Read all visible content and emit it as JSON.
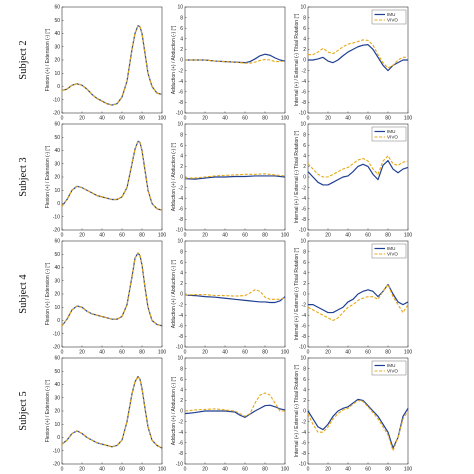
{
  "colors": {
    "imu": "#1f3f93",
    "vivo": "#e6a817"
  },
  "legend": {
    "imu_label": "IMU",
    "vivo_label": "VIVO"
  },
  "y_labels": [
    "Flexion (+) / Extension (-) [°]",
    "Adduction (+) / Abduction (-) [°]",
    "Internal (+) / External (-) Tibial Rotation [°]"
  ],
  "rows": [
    {
      "subject": "Subject 2"
    },
    {
      "subject": "Subject 3"
    },
    {
      "subject": "Subject 4"
    },
    {
      "subject": "Subject 5"
    }
  ],
  "chart_data": [
    {
      "type": "line",
      "subject": "Subject 2",
      "ylabel": "Flexion (+) / Extension (-) [°]",
      "xlim": [
        0,
        100
      ],
      "ylim": [
        -20,
        60
      ],
      "x": [
        0,
        5,
        10,
        15,
        20,
        25,
        30,
        35,
        40,
        45,
        50,
        55,
        60,
        65,
        70,
        73,
        76,
        78,
        80,
        83,
        86,
        90,
        95,
        100
      ],
      "series": [
        {
          "name": "IMU",
          "values": [
            -3,
            -2,
            1,
            2,
            1,
            -2,
            -6,
            -9,
            -11,
            -13,
            -14,
            -13,
            -8,
            4,
            28,
            40,
            46,
            45,
            40,
            25,
            10,
            0,
            -5,
            -6
          ]
        },
        {
          "name": "VIVO",
          "values": [
            -3,
            -2,
            1,
            2,
            1,
            -2,
            -6,
            -9,
            -11,
            -13,
            -14,
            -13,
            -8,
            4,
            28,
            40,
            46,
            45,
            40,
            25,
            10,
            0,
            -5,
            -6
          ]
        }
      ]
    },
    {
      "type": "line",
      "subject": "Subject 2",
      "ylabel": "Adduction (+) / Abduction (-) [°]",
      "xlim": [
        0,
        100
      ],
      "ylim": [
        -10,
        10
      ],
      "x": [
        0,
        10,
        20,
        30,
        40,
        50,
        60,
        65,
        70,
        75,
        80,
        85,
        90,
        95,
        100
      ],
      "series": [
        {
          "name": "IMU",
          "values": [
            0,
            0,
            0,
            -0.2,
            -0.3,
            -0.4,
            -0.5,
            -0.3,
            0.2,
            0.8,
            1.1,
            0.9,
            0.4,
            0,
            -0.2
          ]
        },
        {
          "name": "VIVO",
          "values": [
            0,
            0,
            0,
            -0.2,
            -0.3,
            -0.4,
            -0.6,
            -0.6,
            -0.4,
            -0.1,
            0.1,
            0,
            -0.3,
            -0.3,
            -0.2
          ]
        }
      ]
    },
    {
      "type": "line",
      "subject": "Subject 2",
      "ylabel": "Internal (+) / External (-) Tibial Rotation [°]",
      "xlim": [
        0,
        100
      ],
      "ylim": [
        -10,
        10
      ],
      "x": [
        0,
        5,
        10,
        15,
        20,
        25,
        30,
        35,
        40,
        45,
        50,
        55,
        60,
        65,
        70,
        75,
        80,
        85,
        90,
        95,
        100
      ],
      "series": [
        {
          "name": "IMU",
          "values": [
            0,
            0,
            0.2,
            0.5,
            -0.2,
            -0.5,
            0,
            0.8,
            1.5,
            2,
            2.5,
            2.8,
            2.9,
            2,
            0.5,
            -1,
            -2,
            -1,
            -0.5,
            0,
            0
          ]
        },
        {
          "name": "VIVO",
          "values": [
            1,
            1,
            1.5,
            2.2,
            1.5,
            1.2,
            1.8,
            2.5,
            3,
            3.2,
            3.5,
            3.8,
            3.7,
            2.8,
            1,
            -0.5,
            -1.5,
            -1,
            0,
            0.5,
            0.5
          ]
        }
      ]
    },
    {
      "type": "line",
      "subject": "Subject 3",
      "ylabel": "Flexion (+) / Extension (-) [°]",
      "xlim": [
        0,
        100
      ],
      "ylim": [
        -20,
        60
      ],
      "x": [
        0,
        5,
        10,
        15,
        20,
        25,
        30,
        35,
        40,
        45,
        50,
        55,
        60,
        65,
        70,
        73,
        76,
        78,
        80,
        83,
        86,
        90,
        95,
        100
      ],
      "series": [
        {
          "name": "IMU",
          "values": [
            -2,
            3,
            10,
            13,
            12,
            10,
            8,
            6,
            5,
            4,
            3,
            3,
            5,
            12,
            30,
            41,
            47,
            46,
            40,
            25,
            10,
            0,
            -4,
            -5
          ]
        },
        {
          "name": "VIVO",
          "values": [
            -2,
            3,
            10,
            13,
            12,
            10,
            8,
            6,
            5,
            4,
            3,
            3,
            5,
            12,
            30,
            41,
            47,
            46,
            40,
            25,
            10,
            0,
            -4,
            -5
          ]
        }
      ]
    },
    {
      "type": "line",
      "subject": "Subject 3",
      "ylabel": "Adduction (+) / Abduction (-) [°]",
      "xlim": [
        0,
        100
      ],
      "ylim": [
        -10,
        10
      ],
      "x": [
        0,
        10,
        20,
        30,
        40,
        50,
        60,
        70,
        80,
        90,
        100
      ],
      "series": [
        {
          "name": "IMU",
          "values": [
            -0.3,
            -0.4,
            -0.2,
            0,
            0,
            0.1,
            0.1,
            0.2,
            0.2,
            0.2,
            0
          ]
        },
        {
          "name": "VIVO",
          "values": [
            -0.2,
            -0.2,
            0,
            0.2,
            0.3,
            0.4,
            0.5,
            0.5,
            0.6,
            0.4,
            0.2
          ]
        }
      ]
    },
    {
      "type": "line",
      "subject": "Subject 3",
      "ylabel": "Internal (+) / External (-) Tibial Rotation [°]",
      "xlim": [
        0,
        100
      ],
      "ylim": [
        -10,
        10
      ],
      "x": [
        0,
        5,
        10,
        15,
        20,
        25,
        30,
        35,
        40,
        45,
        50,
        55,
        60,
        65,
        70,
        75,
        80,
        85,
        90,
        95,
        100
      ],
      "series": [
        {
          "name": "IMU",
          "values": [
            1,
            0,
            -1,
            -1.5,
            -1.5,
            -1,
            -0.5,
            0,
            0.2,
            1,
            2,
            2.4,
            2,
            0.5,
            -0.5,
            2.2,
            3.1,
            1.5,
            0.8,
            1.5,
            1.8
          ]
        },
        {
          "name": "VIVO",
          "values": [
            2.5,
            1.5,
            0.5,
            0,
            0,
            0.5,
            1,
            1.5,
            1.8,
            2.5,
            3.2,
            3.5,
            3,
            1.5,
            0.5,
            3,
            4,
            2.5,
            2.2,
            2.8,
            3
          ]
        }
      ]
    },
    {
      "type": "line",
      "subject": "Subject 4",
      "ylabel": "Flexion (+) / Extension (-) [°]",
      "xlim": [
        0,
        100
      ],
      "ylim": [
        -20,
        60
      ],
      "x": [
        0,
        5,
        10,
        15,
        20,
        25,
        30,
        35,
        40,
        45,
        50,
        55,
        60,
        65,
        70,
        73,
        76,
        78,
        80,
        83,
        86,
        90,
        95,
        100
      ],
      "series": [
        {
          "name": "IMU",
          "values": [
            -4,
            1,
            8,
            11,
            10,
            7,
            5,
            4,
            3,
            2,
            1,
            1,
            3,
            12,
            33,
            47,
            51,
            49,
            42,
            25,
            10,
            0,
            -3,
            -4
          ]
        },
        {
          "name": "VIVO",
          "values": [
            -4,
            1,
            8,
            11,
            10,
            7,
            5,
            4,
            3,
            2,
            1,
            1,
            3,
            12,
            33,
            47,
            51,
            49,
            42,
            25,
            10,
            0,
            -3,
            -4
          ]
        }
      ]
    },
    {
      "type": "line",
      "subject": "Subject 4",
      "ylabel": "Adduction (+) / Abduction (-) [°]",
      "xlim": [
        0,
        100
      ],
      "ylim": [
        -10,
        10
      ],
      "x": [
        0,
        10,
        20,
        30,
        40,
        50,
        60,
        65,
        70,
        75,
        80,
        85,
        90,
        95,
        100
      ],
      "series": [
        {
          "name": "IMU",
          "values": [
            -0.2,
            -0.3,
            -0.5,
            -0.6,
            -0.8,
            -1,
            -1.2,
            -1.3,
            -1.4,
            -1.5,
            -1.5,
            -1.6,
            -1.6,
            -1.3,
            -0.5
          ]
        },
        {
          "name": "VIVO",
          "values": [
            -0.2,
            -0.1,
            -0.1,
            -0.3,
            -0.3,
            -0.4,
            -0.3,
            0.2,
            0.8,
            0.5,
            -0.6,
            -1,
            -1,
            -1,
            -0.7
          ]
        }
      ]
    },
    {
      "type": "line",
      "subject": "Subject 4",
      "ylabel": "Internal (+) / External (-) Tibial Rotation [°]",
      "xlim": [
        0,
        100
      ],
      "ylim": [
        -10,
        10
      ],
      "x": [
        0,
        5,
        10,
        15,
        20,
        25,
        30,
        35,
        40,
        45,
        50,
        55,
        60,
        65,
        70,
        75,
        80,
        85,
        90,
        95,
        100
      ],
      "series": [
        {
          "name": "IMU",
          "values": [
            -2,
            -2,
            -2.5,
            -3,
            -3.5,
            -3.5,
            -3,
            -2.5,
            -1.5,
            -1,
            0,
            0.5,
            0.8,
            0.5,
            -0.5,
            0.5,
            1.8,
            0,
            -1.5,
            -2,
            -1.5
          ]
        },
        {
          "name": "VIVO",
          "values": [
            -2.5,
            -3,
            -3.5,
            -4,
            -4.5,
            -5,
            -4.5,
            -3.5,
            -2.5,
            -2,
            -1.2,
            -0.8,
            -0.5,
            -0.5,
            -1,
            0.5,
            1.8,
            -0.5,
            -2,
            -3.5,
            -2
          ]
        }
      ]
    },
    {
      "type": "line",
      "subject": "Subject 5",
      "ylabel": "Flexion (+) / Extension (-) [°]",
      "xlim": [
        0,
        100
      ],
      "ylim": [
        -20,
        60
      ],
      "x": [
        0,
        5,
        10,
        15,
        20,
        25,
        30,
        35,
        40,
        45,
        50,
        55,
        60,
        65,
        70,
        73,
        76,
        78,
        80,
        83,
        86,
        90,
        95,
        100
      ],
      "series": [
        {
          "name": "IMU",
          "values": [
            -5,
            -2,
            3,
            5,
            3,
            0,
            -2,
            -4,
            -5,
            -6,
            -7,
            -6,
            -2,
            12,
            33,
            42,
            46,
            44,
            37,
            22,
            8,
            -2,
            -6,
            -8
          ]
        },
        {
          "name": "VIVO",
          "values": [
            -5,
            -2,
            3,
            5,
            3,
            0,
            -2,
            -4,
            -5,
            -6,
            -7,
            -6,
            -2,
            12,
            33,
            42,
            46,
            44,
            37,
            22,
            8,
            -2,
            -6,
            -8
          ]
        }
      ]
    },
    {
      "type": "line",
      "subject": "Subject 5",
      "ylabel": "Adduction (+) / Abduction (-) [°]",
      "xlim": [
        0,
        100
      ],
      "ylim": [
        -10,
        10
      ],
      "x": [
        0,
        10,
        20,
        30,
        40,
        50,
        55,
        60,
        65,
        70,
        75,
        80,
        85,
        90,
        95,
        100
      ],
      "series": [
        {
          "name": "IMU",
          "values": [
            -0.5,
            -0.3,
            0,
            0,
            0,
            -0.2,
            -0.8,
            -1.2,
            -0.6,
            0,
            0.5,
            1,
            1.1,
            0.8,
            0.4,
            0.2
          ]
        },
        {
          "name": "VIVO",
          "values": [
            0,
            0.2,
            0.3,
            0.4,
            0.2,
            0,
            -0.5,
            -1,
            -0.5,
            1.5,
            3,
            3.4,
            3,
            1.5,
            0,
            0
          ]
        }
      ]
    },
    {
      "type": "line",
      "subject": "Subject 5",
      "ylabel": "Internal (+) / External (-) Tibial Rotation [°]",
      "xlim": [
        0,
        100
      ],
      "ylim": [
        -10,
        10
      ],
      "x": [
        0,
        5,
        10,
        15,
        20,
        25,
        30,
        35,
        40,
        45,
        50,
        55,
        60,
        65,
        70,
        75,
        80,
        85,
        90,
        95,
        100
      ],
      "series": [
        {
          "name": "IMU",
          "values": [
            0,
            -1.5,
            -3,
            -3.5,
            -2.5,
            -1,
            0,
            0.5,
            0.8,
            1.5,
            2.2,
            2,
            1,
            0,
            -1,
            -2.5,
            -4,
            -7,
            -5,
            -1,
            0.5
          ]
        },
        {
          "name": "VIVO",
          "values": [
            -0.5,
            -2.5,
            -4,
            -4,
            -3,
            -1.5,
            -0.5,
            0.2,
            0.5,
            1.3,
            2,
            1.8,
            0.8,
            -0.3,
            -1.5,
            -3,
            -4.5,
            -7.5,
            -5,
            -1.5,
            0
          ]
        }
      ]
    }
  ]
}
